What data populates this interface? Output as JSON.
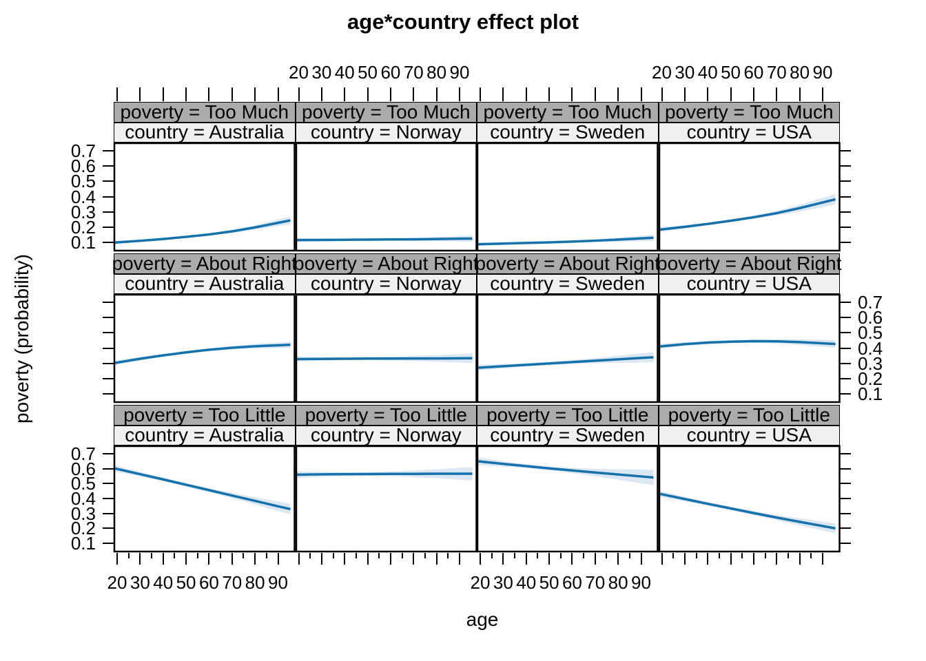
{
  "chart_data": {
    "type": "line",
    "title": "age*country effect plot",
    "xlabel": "age",
    "ylabel": "poverty (probability)",
    "x_ticks": [
      20,
      30,
      40,
      50,
      60,
      70,
      80,
      90
    ],
    "x_tick_labels": [
      "20",
      "30",
      "40",
      "50",
      "60",
      "70",
      "80",
      "90"
    ],
    "y_ticks": [
      0.1,
      0.2,
      0.3,
      0.4,
      0.5,
      0.6,
      0.7
    ],
    "y_tick_labels": [
      "0.1",
      "0.2",
      "0.3",
      "0.4",
      "0.5",
      "0.6",
      "0.7"
    ],
    "xlim": [
      19,
      95.5
    ],
    "ylim": [
      0.05,
      0.75
    ],
    "row_strip_prefix": "poverty = ",
    "col_strip_prefix": "country = ",
    "facet_rows": [
      "Too Much",
      "About Right",
      "Too Little"
    ],
    "facet_cols": [
      "Australia",
      "Norway",
      "Sweden",
      "USA"
    ],
    "line_color": "#1571ab",
    "band_color": "#dbe7f3",
    "strip_row_bg": "#ababab",
    "strip_col_bg": "#f0f0f0",
    "panels": [
      {
        "poverty": "Too Much",
        "country": "Australia",
        "values": [
          0.1,
          0.11,
          0.122,
          0.136,
          0.152,
          0.172,
          0.198,
          0.228
        ],
        "ci": [
          0.01,
          0.007,
          0.006,
          0.006,
          0.007,
          0.01,
          0.015,
          0.022
        ]
      },
      {
        "poverty": "Too Much",
        "country": "Norway",
        "values": [
          0.115,
          0.116,
          0.117,
          0.118,
          0.119,
          0.12,
          0.122,
          0.124
        ],
        "ci": [
          0.012,
          0.009,
          0.007,
          0.007,
          0.008,
          0.01,
          0.014,
          0.018
        ]
      },
      {
        "poverty": "Too Much",
        "country": "Sweden",
        "values": [
          0.088,
          0.092,
          0.096,
          0.1,
          0.105,
          0.111,
          0.118,
          0.126
        ],
        "ci": [
          0.01,
          0.008,
          0.006,
          0.006,
          0.007,
          0.009,
          0.013,
          0.018
        ]
      },
      {
        "poverty": "Too Much",
        "country": "USA",
        "values": [
          0.185,
          0.202,
          0.221,
          0.242,
          0.265,
          0.292,
          0.325,
          0.362
        ],
        "ci": [
          0.015,
          0.011,
          0.009,
          0.009,
          0.011,
          0.015,
          0.022,
          0.03
        ]
      },
      {
        "poverty": "About Right",
        "country": "Australia",
        "values": [
          0.305,
          0.33,
          0.352,
          0.372,
          0.389,
          0.402,
          0.412,
          0.418
        ],
        "ci": [
          0.015,
          0.011,
          0.009,
          0.009,
          0.01,
          0.012,
          0.015,
          0.018
        ]
      },
      {
        "poverty": "About Right",
        "country": "Norway",
        "values": [
          0.328,
          0.329,
          0.33,
          0.331,
          0.331,
          0.332,
          0.332,
          0.333
        ],
        "ci": [
          0.015,
          0.012,
          0.01,
          0.01,
          0.012,
          0.016,
          0.022,
          0.028
        ]
      },
      {
        "poverty": "About Right",
        "country": "Sweden",
        "values": [
          0.272,
          0.281,
          0.29,
          0.299,
          0.308,
          0.317,
          0.326,
          0.335
        ],
        "ci": [
          0.018,
          0.014,
          0.011,
          0.011,
          0.013,
          0.017,
          0.023,
          0.03
        ]
      },
      {
        "poverty": "About Right",
        "country": "USA",
        "values": [
          0.412,
          0.426,
          0.436,
          0.442,
          0.445,
          0.444,
          0.439,
          0.431
        ],
        "ci": [
          0.016,
          0.012,
          0.01,
          0.01,
          0.011,
          0.014,
          0.018,
          0.023
        ]
      },
      {
        "poverty": "Too Little",
        "country": "Australia",
        "values": [
          0.598,
          0.563,
          0.528,
          0.492,
          0.456,
          0.42,
          0.384,
          0.348
        ],
        "ci": [
          0.02,
          0.015,
          0.012,
          0.012,
          0.014,
          0.018,
          0.024,
          0.032
        ]
      },
      {
        "poverty": "Too Little",
        "country": "Norway",
        "values": [
          0.56,
          0.562,
          0.563,
          0.564,
          0.565,
          0.565,
          0.566,
          0.566
        ],
        "ci": [
          0.022,
          0.016,
          0.013,
          0.013,
          0.016,
          0.022,
          0.03,
          0.04
        ]
      },
      {
        "poverty": "Too Little",
        "country": "Sweden",
        "values": [
          0.648,
          0.632,
          0.617,
          0.602,
          0.588,
          0.574,
          0.561,
          0.548
        ],
        "ci": [
          0.025,
          0.018,
          0.014,
          0.014,
          0.018,
          0.025,
          0.035,
          0.046
        ]
      },
      {
        "poverty": "Too Little",
        "country": "USA",
        "values": [
          0.428,
          0.396,
          0.364,
          0.333,
          0.302,
          0.272,
          0.243,
          0.215
        ],
        "ci": [
          0.02,
          0.015,
          0.012,
          0.012,
          0.014,
          0.018,
          0.024,
          0.03
        ]
      }
    ]
  }
}
